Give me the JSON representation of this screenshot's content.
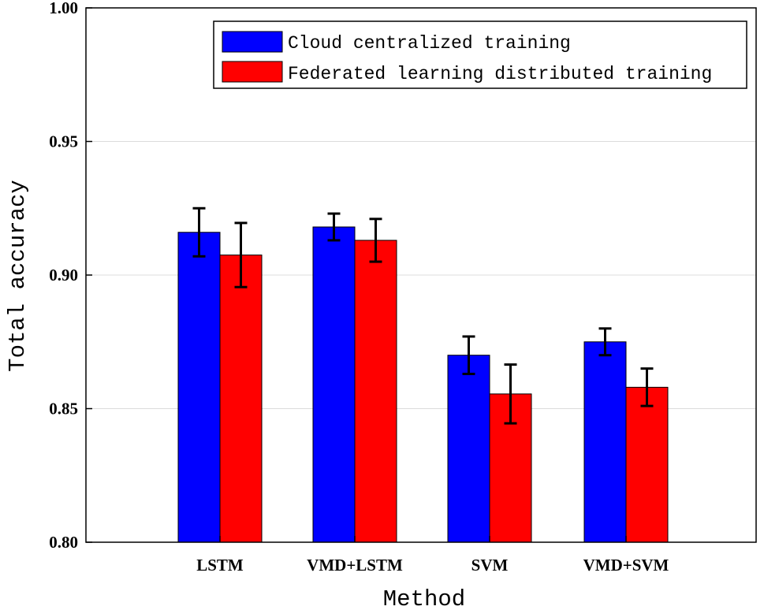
{
  "chart_data": {
    "type": "bar",
    "xlabel": "Method",
    "ylabel": "Total accuracy",
    "ylim": [
      0.8,
      1.0
    ],
    "yticks": [
      0.8,
      0.85,
      0.9,
      0.95,
      1.0
    ],
    "ytick_labels": [
      "0.80",
      "0.85",
      "0.90",
      "0.95",
      "1.00"
    ],
    "grid": true,
    "legend_position": "top-right",
    "categories": [
      "LSTM",
      "VMD+LSTM",
      "SVM",
      "VMD+SVM"
    ],
    "series": [
      {
        "name": "Cloud centralized training",
        "color": "#0000ff",
        "values": [
          0.916,
          0.918,
          0.87,
          0.875
        ],
        "errors": [
          0.009,
          0.005,
          0.007,
          0.005
        ]
      },
      {
        "name": "Federated learning distributed training",
        "color": "#ff0000",
        "values": [
          0.9075,
          0.913,
          0.8555,
          0.858
        ],
        "errors": [
          0.012,
          0.008,
          0.011,
          0.007
        ]
      }
    ]
  }
}
